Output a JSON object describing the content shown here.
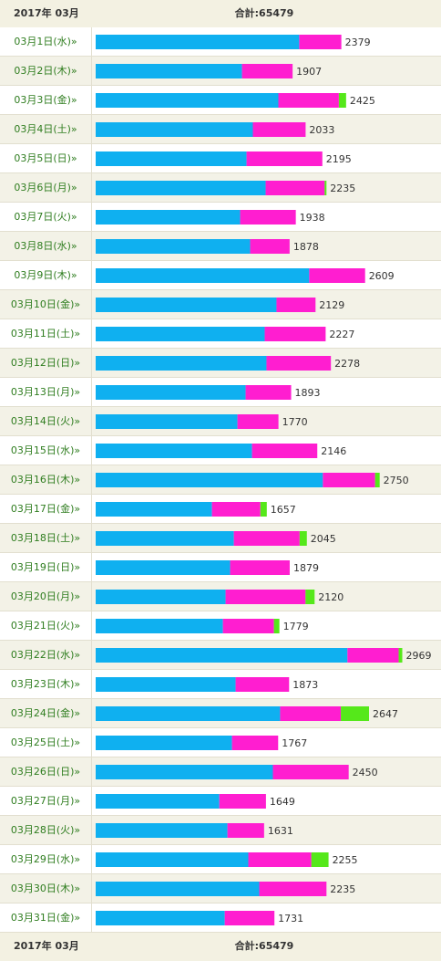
{
  "header": {
    "title": "2017年 03月",
    "total": "合計:65479"
  },
  "chart_data": {
    "type": "bar",
    "orientation": "horizontal",
    "stacked": true,
    "categories": [
      "03月1日(水)»",
      "03月2日(木)»",
      "03月3日(金)»",
      "03月4日(土)»",
      "03月5日(日)»",
      "03月6日(月)»",
      "03月7日(火)»",
      "03月8日(水)»",
      "03月9日(木)»",
      "03月10日(金)»",
      "03月11日(土)»",
      "03月12日(日)»",
      "03月13日(月)»",
      "03月14日(火)»",
      "03月15日(水)»",
      "03月16日(木)»",
      "03月17日(金)»",
      "03月18日(土)»",
      "03月19日(日)»",
      "03月20日(月)»",
      "03月21日(火)»",
      "03月22日(水)»",
      "03月23日(木)»",
      "03月24日(金)»",
      "03月25日(土)»",
      "03月26日(日)»",
      "03月27日(月)»",
      "03月28日(火)»",
      "03月29日(水)»",
      "03月30日(木)»",
      "03月31日(金)»"
    ],
    "series": [
      {
        "color": "#0fb0f0",
        "values": [
          1971,
          1417,
          1769,
          1522,
          1461,
          1646,
          1399,
          1496,
          2068,
          1751,
          1637,
          1654,
          1452,
          1373,
          1514,
          2200,
          1126,
          1338,
          1302,
          1258,
          1232,
          2438,
          1355,
          1786,
          1320,
          1716,
          1197,
          1276,
          1478,
          1584,
          1250
        ]
      },
      {
        "color": "#ff1ed0",
        "values": [
          408,
          490,
          586,
          511,
          734,
          571,
          539,
          382,
          541,
          378,
          590,
          624,
          441,
          397,
          632,
          506,
          469,
          637,
          577,
          774,
          494,
          496,
          518,
          588,
          447,
          734,
          452,
          355,
          610,
          651,
          481
        ]
      },
      {
        "color": "#55e81a",
        "values": [
          0,
          0,
          70,
          0,
          0,
          18,
          0,
          0,
          0,
          0,
          0,
          0,
          0,
          0,
          0,
          44,
          62,
          70,
          0,
          88,
          53,
          35,
          0,
          273,
          0,
          0,
          0,
          0,
          167,
          0,
          0
        ]
      }
    ],
    "totals": [
      2379,
      1907,
      2425,
      2033,
      2195,
      2235,
      1938,
      1878,
      2609,
      2129,
      2227,
      2278,
      1893,
      1770,
      2146,
      2750,
      1657,
      2045,
      1879,
      2120,
      1779,
      2969,
      1873,
      2647,
      1767,
      2450,
      1649,
      1631,
      2255,
      2235,
      1731
    ],
    "xlim": [
      0,
      3344
    ]
  }
}
